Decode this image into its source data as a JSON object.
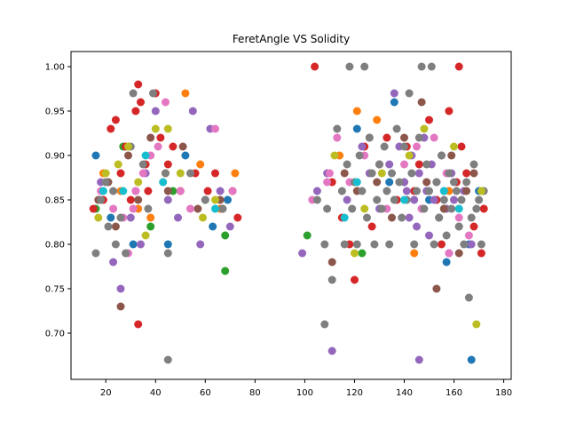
{
  "chart_data": {
    "type": "scatter",
    "title": "FeretAngle VS Solidity",
    "xlabel": "",
    "ylabel": "",
    "xlim": [
      6,
      183
    ],
    "ylim": [
      0.648,
      1.017
    ],
    "xticks": [
      20,
      40,
      60,
      80,
      100,
      120,
      140,
      160,
      180
    ],
    "yticks": [
      0.7,
      0.75,
      0.8,
      0.85,
      0.9,
      0.95,
      1.0
    ],
    "xtick_labels": [
      "20",
      "40",
      "60",
      "80",
      "100",
      "120",
      "140",
      "160",
      "180"
    ],
    "ytick_labels": [
      "0.70",
      "0.75",
      "0.80",
      "0.85",
      "0.90",
      "0.95",
      "1.00"
    ],
    "grid": false,
    "legend": "none",
    "series": [
      {
        "color": "#1f77b4",
        "points": [
          [
            16,
            0.9
          ],
          [
            22,
            0.83
          ],
          [
            31,
            0.8
          ],
          [
            45,
            0.8
          ],
          [
            52,
            0.9
          ],
          [
            63,
            0.82
          ],
          [
            69,
            0.85
          ],
          [
            121,
            0.93
          ],
          [
            136,
            0.96
          ],
          [
            150,
            0.85
          ],
          [
            157,
            0.78
          ],
          [
            166,
            0.8
          ],
          [
            170,
            0.86
          ],
          [
            167,
            0.67
          ],
          [
            134,
            0.87
          ]
        ]
      },
      {
        "color": "#ff7f0e",
        "points": [
          [
            19,
            0.88
          ],
          [
            26,
            0.86
          ],
          [
            33,
            0.84
          ],
          [
            38,
            0.83
          ],
          [
            44,
            0.88
          ],
          [
            52,
            0.97
          ],
          [
            58,
            0.89
          ],
          [
            66,
            0.84
          ],
          [
            72,
            0.88
          ],
          [
            121,
            0.95
          ],
          [
            129,
            0.94
          ],
          [
            144,
            0.79
          ],
          [
            158,
            0.86
          ],
          [
            114,
            0.9
          ]
        ]
      },
      {
        "color": "#2ca02c",
        "points": [
          [
            16,
            0.84
          ],
          [
            27,
            0.91
          ],
          [
            38,
            0.82
          ],
          [
            47,
            0.86
          ],
          [
            68,
            0.81
          ],
          [
            68,
            0.77
          ],
          [
            101,
            0.81
          ],
          [
            123,
            0.79
          ],
          [
            140,
            0.87
          ],
          [
            156,
            0.84
          ]
        ]
      },
      {
        "color": "#d62728",
        "points": [
          [
            15,
            0.84
          ],
          [
            19,
            0.85
          ],
          [
            22,
            0.93
          ],
          [
            24,
            0.94
          ],
          [
            26,
            0.88
          ],
          [
            28,
            0.91
          ],
          [
            30,
            0.85
          ],
          [
            32,
            0.95
          ],
          [
            33,
            0.98
          ],
          [
            33,
            0.71
          ],
          [
            34,
            0.96
          ],
          [
            36,
            0.89
          ],
          [
            37,
            0.86
          ],
          [
            40,
            0.97
          ],
          [
            42,
            0.92
          ],
          [
            45,
            0.89
          ],
          [
            47,
            0.91
          ],
          [
            50,
            0.86
          ],
          [
            56,
            0.88
          ],
          [
            61,
            0.86
          ],
          [
            64,
            0.88
          ],
          [
            67,
            0.84
          ],
          [
            71,
            0.86
          ],
          [
            73,
            0.83
          ],
          [
            104,
            1.0
          ],
          [
            111,
            0.87
          ],
          [
            115,
            0.83
          ],
          [
            118,
            0.8
          ],
          [
            120,
            0.76
          ],
          [
            124,
            0.91
          ],
          [
            127,
            0.82
          ],
          [
            130,
            0.89
          ],
          [
            133,
            0.92
          ],
          [
            137,
            0.85
          ],
          [
            141,
            0.91
          ],
          [
            144,
            0.86
          ],
          [
            146,
            0.89
          ],
          [
            150,
            0.94
          ],
          [
            153,
            0.85
          ],
          [
            155,
            0.8
          ],
          [
            158,
            0.95
          ],
          [
            161,
            0.87
          ],
          [
            162,
            1.0
          ],
          [
            163,
            0.91
          ],
          [
            165,
            0.88
          ],
          [
            168,
            0.82
          ],
          [
            171,
            0.79
          ],
          [
            172,
            0.84
          ]
        ]
      },
      {
        "color": "#9467bd",
        "points": [
          [
            18,
            0.87
          ],
          [
            23,
            0.78
          ],
          [
            26,
            0.75
          ],
          [
            30,
            0.83
          ],
          [
            32,
            0.86
          ],
          [
            34,
            0.8
          ],
          [
            36,
            0.88
          ],
          [
            40,
            0.95
          ],
          [
            45,
            0.85
          ],
          [
            49,
            0.83
          ],
          [
            55,
            0.95
          ],
          [
            58,
            0.8
          ],
          [
            62,
            0.93
          ],
          [
            66,
            0.86
          ],
          [
            70,
            0.82
          ],
          [
            99,
            0.79
          ],
          [
            105,
            0.86
          ],
          [
            109,
            0.88
          ],
          [
            111,
            0.68
          ],
          [
            117,
            0.85
          ],
          [
            123,
            0.91
          ],
          [
            126,
            0.88
          ],
          [
            130,
            0.84
          ],
          [
            134,
            0.89
          ],
          [
            136,
            0.97
          ],
          [
            138,
            0.91
          ],
          [
            140,
            0.87
          ],
          [
            141,
            0.86
          ],
          [
            142,
            0.83
          ],
          [
            143,
            0.9
          ],
          [
            144,
            0.85
          ],
          [
            145,
            0.82
          ],
          [
            146,
            0.88
          ],
          [
            146,
            0.67
          ],
          [
            147,
            0.84
          ],
          [
            148,
            0.92
          ],
          [
            149,
            0.86
          ],
          [
            150,
            0.81
          ],
          [
            151,
            0.89
          ],
          [
            152,
            0.85
          ],
          [
            153,
            0.87
          ],
          [
            154,
            0.83
          ],
          [
            155,
            0.9
          ],
          [
            156,
            0.86
          ],
          [
            157,
            0.84
          ],
          [
            158,
            0.79
          ],
          [
            159,
            0.88
          ],
          [
            160,
            0.85
          ],
          [
            162,
            0.82
          ],
          [
            164,
            0.86
          ],
          [
            167,
            0.8
          ]
        ]
      },
      {
        "color": "#8c564b",
        "points": [
          [
            17,
            0.85
          ],
          [
            21,
            0.87
          ],
          [
            24,
            0.82
          ],
          [
            26,
            0.73
          ],
          [
            29,
            0.9
          ],
          [
            33,
            0.85
          ],
          [
            38,
            0.92
          ],
          [
            45,
            0.86
          ],
          [
            51,
            0.91
          ],
          [
            57,
            0.84
          ],
          [
            60,
            0.85
          ],
          [
            66,
            0.85
          ],
          [
            111,
            0.78
          ],
          [
            116,
            0.88
          ],
          [
            121,
            0.86
          ],
          [
            126,
            0.92
          ],
          [
            129,
            0.87
          ],
          [
            135,
            0.83
          ],
          [
            140,
            0.92
          ],
          [
            147,
            0.96
          ],
          [
            149,
            0.87
          ],
          [
            153,
            0.75
          ],
          [
            156,
            0.84
          ],
          [
            159,
            0.9
          ],
          [
            162,
            0.79
          ],
          [
            165,
            0.86
          ],
          [
            168,
            0.88
          ]
        ]
      },
      {
        "color": "#e377c2",
        "points": [
          [
            18,
            0.86
          ],
          [
            23,
            0.84
          ],
          [
            27,
            0.83
          ],
          [
            29,
            0.79
          ],
          [
            31,
            0.84
          ],
          [
            32,
            0.86
          ],
          [
            35,
            0.88
          ],
          [
            38,
            0.9
          ],
          [
            41,
            0.91
          ],
          [
            44,
            0.96
          ],
          [
            50,
            0.86
          ],
          [
            54,
            0.84
          ],
          [
            64,
            0.93
          ],
          [
            71,
            0.86
          ],
          [
            103,
            0.85
          ],
          [
            109,
            0.87
          ],
          [
            110,
            0.88
          ],
          [
            113,
            0.92
          ],
          [
            118,
            0.87
          ],
          [
            124,
            0.9
          ],
          [
            133,
            0.84
          ],
          [
            140,
            0.89
          ],
          [
            145,
            0.91
          ],
          [
            147,
            0.84
          ],
          [
            152,
            0.92
          ],
          [
            157,
            0.88
          ],
          [
            162,
            0.83
          ],
          [
            166,
            0.81
          ],
          [
            158,
            0.79
          ]
        ]
      },
      {
        "color": "#7f7f7f",
        "points": [
          [
            16,
            0.79
          ],
          [
            18,
            0.85
          ],
          [
            20,
            0.87
          ],
          [
            21,
            0.82
          ],
          [
            23,
            0.86
          ],
          [
            24,
            0.8
          ],
          [
            26,
            0.83
          ],
          [
            28,
            0.79
          ],
          [
            30,
            0.91
          ],
          [
            31,
            0.97
          ],
          [
            35,
            0.89
          ],
          [
            37,
            0.84
          ],
          [
            39,
            0.97
          ],
          [
            44,
            0.88
          ],
          [
            45,
            0.79
          ],
          [
            45,
            0.67
          ],
          [
            54,
            0.88
          ],
          [
            60,
            0.85
          ],
          [
            67,
            0.84
          ],
          [
            105,
            0.85
          ],
          [
            108,
            0.8
          ],
          [
            108,
            0.71
          ],
          [
            109,
            0.84
          ],
          [
            111,
            0.76
          ],
          [
            113,
            0.93
          ],
          [
            115,
            0.86
          ],
          [
            116,
            0.8
          ],
          [
            117,
            0.89
          ],
          [
            118,
            1.0
          ],
          [
            119,
            0.84
          ],
          [
            120,
            0.87
          ],
          [
            121,
            0.8
          ],
          [
            122,
            0.9
          ],
          [
            123,
            0.86
          ],
          [
            124,
            1.0
          ],
          [
            125,
            0.83
          ],
          [
            126,
            0.92
          ],
          [
            127,
            0.88
          ],
          [
            128,
            0.8
          ],
          [
            129,
            0.85
          ],
          [
            130,
            0.89
          ],
          [
            131,
            0.84
          ],
          [
            132,
            0.91
          ],
          [
            133,
            0.86
          ],
          [
            134,
            0.8
          ],
          [
            135,
            0.88
          ],
          [
            136,
            0.85
          ],
          [
            137,
            0.93
          ],
          [
            138,
            0.87
          ],
          [
            139,
            0.83
          ],
          [
            140,
            0.91
          ],
          [
            141,
            0.85
          ],
          [
            142,
            0.97
          ],
          [
            143,
            0.88
          ],
          [
            144,
            0.8
          ],
          [
            145,
            0.86
          ],
          [
            146,
            0.92
          ],
          [
            147,
            1.0
          ],
          [
            148,
            0.84
          ],
          [
            149,
            0.89
          ],
          [
            150,
            0.86
          ],
          [
            151,
            1.0
          ],
          [
            152,
            0.8
          ],
          [
            153,
            0.87
          ],
          [
            154,
            0.83
          ],
          [
            155,
            0.9
          ],
          [
            156,
            0.85
          ],
          [
            157,
            0.81
          ],
          [
            158,
            0.88
          ],
          [
            159,
            0.84
          ],
          [
            160,
            0.87
          ],
          [
            161,
            0.86
          ],
          [
            162,
            0.82
          ],
          [
            163,
            0.85
          ],
          [
            164,
            0.8
          ],
          [
            165,
            0.87
          ],
          [
            166,
            0.74
          ],
          [
            167,
            0.83
          ],
          [
            168,
            0.89
          ],
          [
            169,
            0.84
          ],
          [
            170,
            0.85
          ],
          [
            171,
            0.8
          ],
          [
            172,
            0.86
          ]
        ]
      },
      {
        "color": "#bcbd22",
        "points": [
          [
            17,
            0.83
          ],
          [
            20,
            0.88
          ],
          [
            25,
            0.89
          ],
          [
            29,
            0.91
          ],
          [
            33,
            0.87
          ],
          [
            36,
            0.81
          ],
          [
            40,
            0.93
          ],
          [
            45,
            0.93
          ],
          [
            50,
            0.88
          ],
          [
            59,
            0.83
          ],
          [
            64,
            0.85
          ],
          [
            112,
            0.9
          ],
          [
            120,
            0.79
          ],
          [
            124,
            0.84
          ],
          [
            131,
            0.88
          ],
          [
            142,
            0.9
          ],
          [
            148,
            0.93
          ],
          [
            160,
            0.91
          ],
          [
            169,
            0.71
          ],
          [
            171,
            0.86
          ]
        ]
      },
      {
        "color": "#17becf",
        "points": [
          [
            19,
            0.86
          ],
          [
            27,
            0.86
          ],
          [
            36,
            0.9
          ],
          [
            43,
            0.87
          ],
          [
            64,
            0.84
          ],
          [
            116,
            0.83
          ],
          [
            121,
            0.87
          ],
          [
            140,
            0.85
          ],
          [
            156,
            0.86
          ],
          [
            162,
            0.84
          ]
        ]
      }
    ]
  }
}
